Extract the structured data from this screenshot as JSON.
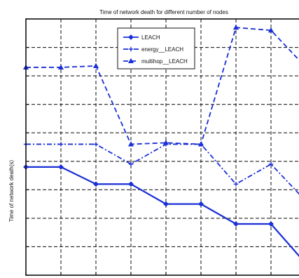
{
  "chart_data": {
    "type": "line",
    "title": "Time of network death for different number of nodes",
    "ylabel": "Time of network death(s)",
    "xlabel": "",
    "x": [
      0,
      1,
      2,
      3,
      4,
      5,
      6,
      7,
      8
    ],
    "xlim": [
      0,
      8
    ],
    "ylim": [
      0,
      9
    ],
    "grid": true,
    "legend_position": "top-center",
    "series": [
      {
        "name": "LEACH",
        "values": [
          3.8,
          3.8,
          3.2,
          3.2,
          2.5,
          2.5,
          1.8,
          1.8,
          0.4
        ],
        "color": "#1a2fd6",
        "dash": "solid",
        "marker": "diamond"
      },
      {
        "name": "energy__LEACH",
        "values": [
          4.6,
          4.6,
          4.6,
          3.9,
          4.6,
          4.6,
          3.2,
          3.9,
          2.6
        ],
        "color": "#1a2fd6",
        "dash": "dashdot",
        "marker": "plus"
      },
      {
        "name": "multihop__LEACH",
        "values": [
          7.3,
          7.3,
          7.35,
          4.6,
          4.65,
          4.6,
          8.7,
          8.6,
          7.3
        ],
        "color": "#1a2fd6",
        "dash": "dashed",
        "marker": "triangle"
      }
    ]
  }
}
